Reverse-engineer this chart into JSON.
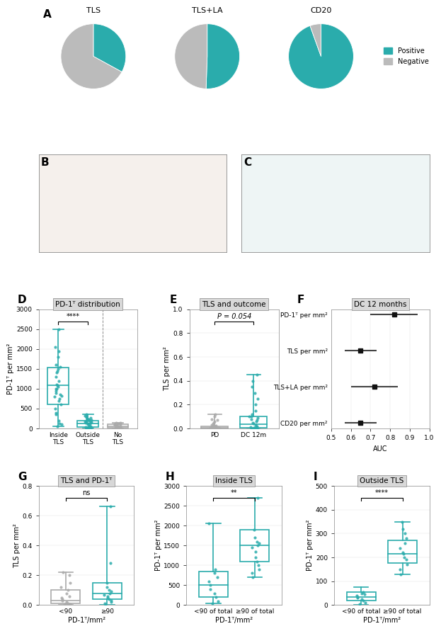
{
  "pie_charts": [
    {
      "title": "TLS",
      "positive": 30,
      "total": 91
    },
    {
      "title": "TLS+LA",
      "positive": 46,
      "total": 91
    },
    {
      "title": "CD20",
      "positive": 86,
      "total": 91
    }
  ],
  "pie_teal": "#2AACAC",
  "pie_gray": "#BBBBBB",
  "panel_D": {
    "title": "PD-1ᵀ distribution",
    "ylabel": "PD-1ᵀ per mm²",
    "groups": [
      "Inside\nTLS",
      "Outside\nTLS",
      "No\nTLS"
    ],
    "medians": [
      1080,
      130,
      60
    ],
    "q1": [
      600,
      40,
      20
    ],
    "q3": [
      1530,
      200,
      100
    ],
    "whislo": [
      60,
      0,
      0
    ],
    "whishi": [
      2500,
      350,
      150
    ],
    "ylim": [
      0,
      3000
    ],
    "yticks": [
      0,
      500,
      1000,
      1500,
      2000,
      2500,
      3000
    ],
    "scatter_inside": [
      60,
      100,
      130,
      200,
      350,
      400,
      500,
      600,
      700,
      750,
      800,
      820,
      850,
      900,
      950,
      1000,
      1000,
      1060,
      1080,
      1100,
      1200,
      1300,
      1400,
      1450,
      1500,
      1550,
      1600,
      1800,
      1950,
      2050,
      2500
    ],
    "scatter_outside": [
      0,
      5,
      10,
      15,
      20,
      25,
      30,
      40,
      50,
      60,
      80,
      100,
      120,
      130,
      140,
      150,
      160,
      170,
      180,
      190,
      200,
      210,
      220,
      230,
      240,
      250,
      260,
      280,
      300,
      320,
      350
    ],
    "scatter_no": [
      0,
      0,
      5,
      10,
      20,
      30,
      40,
      50,
      60,
      70,
      80,
      90,
      100,
      110,
      120,
      130,
      140,
      150
    ],
    "sig_text": "****",
    "colors": [
      "#2AACAC",
      "#2AACAC",
      "#AAAAAA"
    ],
    "vline": 1.5
  },
  "panel_E": {
    "title": "TLS and outcome",
    "ylabel": "TLS per mm²",
    "groups": [
      "PD",
      "DC 12m"
    ],
    "ylim": [
      0,
      1.0
    ],
    "yticks": [
      0.0,
      0.2,
      0.4,
      0.6,
      0.8,
      1.0
    ],
    "medians": [
      0.005,
      0.035
    ],
    "q1": [
      0.0,
      0.005
    ],
    "q3": [
      0.02,
      0.1
    ],
    "whislo": [
      0.0,
      0.0
    ],
    "whishi": [
      0.12,
      0.45
    ],
    "scatter_PD": [
      0,
      0,
      0,
      0,
      0,
      0,
      0.002,
      0.003,
      0.004,
      0.005,
      0.006,
      0.007,
      0.008,
      0.01,
      0.01,
      0.012,
      0.015,
      0.018,
      0.02,
      0.022,
      0.025,
      0.03,
      0.04,
      0.05,
      0.06,
      0.07,
      0.08,
      0.1,
      0.12
    ],
    "scatter_DC": [
      0,
      0,
      0,
      0,
      0.003,
      0.005,
      0.007,
      0.01,
      0.015,
      0.02,
      0.03,
      0.04,
      0.05,
      0.06,
      0.07,
      0.08,
      0.09,
      0.1,
      0.1,
      0.12,
      0.15,
      0.2,
      0.25,
      0.3,
      0.35,
      0.4,
      0.45
    ],
    "p_text": "P = 0.054",
    "colors": [
      "#AAAAAA",
      "#2AACAC"
    ]
  },
  "panel_F": {
    "title": "DC 12 months",
    "xlabel": "AUC",
    "labels": [
      "PD-1ᵀ per mm²",
      "TLS per mm²",
      "TLS+LA per mm²",
      "CD20 per mm²"
    ],
    "auc": [
      0.82,
      0.65,
      0.72,
      0.65
    ],
    "ci_lo": [
      0.7,
      0.57,
      0.6,
      0.57
    ],
    "ci_hi": [
      0.94,
      0.73,
      0.84,
      0.73
    ],
    "xlim": [
      0.5,
      1.0
    ],
    "xticks": [
      0.5,
      0.6,
      0.7,
      0.8,
      0.9,
      1.0
    ]
  },
  "panel_G": {
    "title": "TLS and PD-1ᵀ",
    "ylabel": "TLS per mm²",
    "groups": [
      "<90",
      "≥90"
    ],
    "ylim": [
      0,
      0.8
    ],
    "yticks": [
      0.0,
      0.2,
      0.4,
      0.6,
      0.8
    ],
    "medians": [
      0.03,
      0.08
    ],
    "q1": [
      0.01,
      0.04
    ],
    "q3": [
      0.1,
      0.15
    ],
    "whislo": [
      0.0,
      0.0
    ],
    "whishi": [
      0.22,
      0.66
    ],
    "scatter_low": [
      0,
      0.005,
      0.01,
      0.02,
      0.03,
      0.04,
      0.05,
      0.06,
      0.08,
      0.1,
      0.12,
      0.15,
      0.2,
      0.22
    ],
    "scatter_high": [
      0,
      0.01,
      0.02,
      0.03,
      0.04,
      0.05,
      0.06,
      0.07,
      0.08,
      0.09,
      0.1,
      0.12,
      0.15,
      0.28,
      0.66
    ],
    "sig_text": "ns",
    "colors": [
      "#AAAAAA",
      "#2AACAC"
    ],
    "xlabel": "PD-1ᵀ/mm²"
  },
  "panel_H": {
    "title": "Inside TLS",
    "ylabel": "PD-1ᵀ per mm²",
    "groups": [
      "<90 of total",
      "≥90 of total"
    ],
    "ylim": [
      0,
      3000
    ],
    "yticks": [
      0,
      500,
      1000,
      1500,
      2000,
      2500,
      3000
    ],
    "medians": [
      500,
      1500
    ],
    "q1": [
      200,
      1100
    ],
    "q3": [
      850,
      1900
    ],
    "whislo": [
      50,
      700
    ],
    "whishi": [
      2050,
      2700
    ],
    "scatter_low": [
      50,
      100,
      200,
      300,
      400,
      500,
      600,
      700,
      800,
      900,
      2050
    ],
    "scatter_high": [
      700,
      800,
      900,
      1000,
      1100,
      1200,
      1350,
      1450,
      1500,
      1550,
      1600,
      1700,
      1900,
      2700
    ],
    "sig_text": "**",
    "colors": [
      "#2AACAC",
      "#2AACAC"
    ],
    "xlabel": "PD-1ᵀ/mm²"
  },
  "panel_I": {
    "title": "Outside TLS",
    "ylabel": "PD-1ᵀ per mm²",
    "groups": [
      "<90 of total",
      "≥90 of total"
    ],
    "ylim": [
      0,
      500
    ],
    "yticks": [
      0,
      100,
      200,
      300,
      400,
      500
    ],
    "medians": [
      35,
      215
    ],
    "q1": [
      20,
      175
    ],
    "q3": [
      55,
      270
    ],
    "whislo": [
      0,
      130
    ],
    "whishi": [
      75,
      350
    ],
    "scatter_low": [
      5,
      10,
      20,
      25,
      30,
      35,
      40,
      45,
      50,
      55
    ],
    "scatter_high": [
      130,
      150,
      170,
      190,
      200,
      215,
      220,
      240,
      260,
      280,
      300,
      320,
      350
    ],
    "sig_text": "****",
    "colors": [
      "#2AACAC",
      "#2AACAC"
    ],
    "xlabel": "PD-1ᵀ/mm²"
  }
}
